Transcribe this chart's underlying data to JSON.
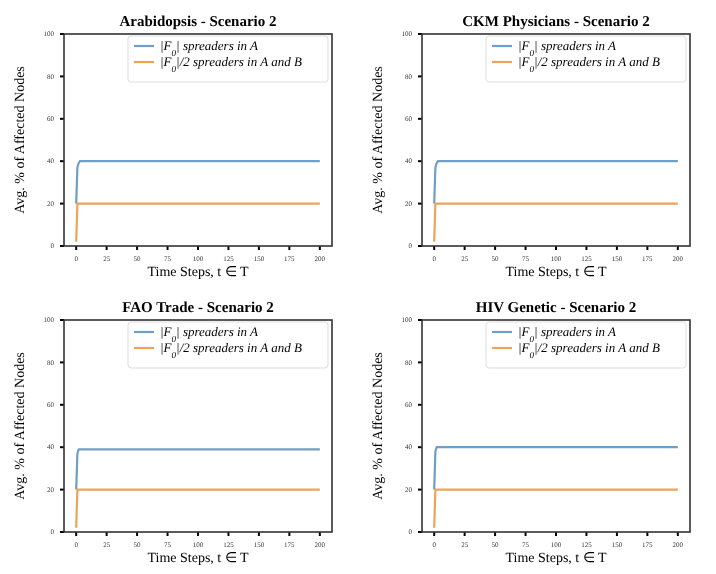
{
  "chart_data": [
    {
      "type": "line",
      "title": "Arabidopsis - Scenario 2",
      "xlabel": "Time Steps, t ∈ T",
      "ylabel": "Avg. % of Affected Nodes",
      "x": [
        0,
        1,
        2,
        3,
        200
      ],
      "xlim": [
        -10,
        210
      ],
      "ylim": [
        0,
        100
      ],
      "xticks": [
        0,
        25,
        50,
        75,
        100,
        125,
        150,
        175,
        200
      ],
      "yticks": [
        0,
        20,
        40,
        60,
        80,
        100
      ],
      "legend": "top right",
      "grid": false,
      "series": [
        {
          "name": "|F$_{0}$| spreaders in A",
          "color": "#6f9fc6",
          "values": [
            20,
            37,
            39,
            40,
            40
          ]
        },
        {
          "name": "|F$_{0}$|/2 spreaders in A and B",
          "color": "#eda35a",
          "values": [
            2,
            20,
            20,
            20,
            20
          ]
        }
      ]
    },
    {
      "type": "line",
      "title": "CKM Physicians - Scenario 2",
      "xlabel": "Time Steps, t ∈ T",
      "ylabel": "Avg. % of Affected Nodes",
      "x": [
        0,
        1,
        2,
        3,
        200
      ],
      "xlim": [
        -10,
        210
      ],
      "ylim": [
        0,
        100
      ],
      "xticks": [
        0,
        25,
        50,
        75,
        100,
        125,
        150,
        175,
        200
      ],
      "yticks": [
        0,
        20,
        40,
        60,
        80,
        100
      ],
      "legend": "top right",
      "grid": false,
      "series": [
        {
          "name": "|F$_{0}$| spreaders in A",
          "color": "#6f9fc6",
          "values": [
            20,
            37,
            39,
            40,
            40
          ]
        },
        {
          "name": "|F$_{0}$|/2 spreaders in A and B",
          "color": "#eda35a",
          "values": [
            2,
            20,
            20,
            20,
            20
          ]
        }
      ]
    },
    {
      "type": "line",
      "title": "FAO Trade - Scenario 2",
      "xlabel": "Time Steps, t ∈ T",
      "ylabel": "Avg. % of Affected Nodes",
      "x": [
        0,
        1,
        2,
        3,
        200
      ],
      "xlim": [
        -10,
        210
      ],
      "ylim": [
        0,
        100
      ],
      "xticks": [
        0,
        25,
        50,
        75,
        100,
        125,
        150,
        175,
        200
      ],
      "yticks": [
        0,
        20,
        40,
        60,
        80,
        100
      ],
      "legend": "top right",
      "grid": false,
      "series": [
        {
          "name": "|F$_{0}$| spreaders in A",
          "color": "#6f9fc6",
          "values": [
            20,
            37,
            39,
            39,
            39
          ]
        },
        {
          "name": "|F$_{0}$|/2 spreaders in A and B",
          "color": "#eda35a",
          "values": [
            2,
            20,
            20,
            20,
            20
          ]
        }
      ]
    },
    {
      "type": "line",
      "title": "HIV Genetic - Scenario 2",
      "xlabel": "Time Steps, t ∈ T",
      "ylabel": "Avg. % of Affected Nodes",
      "x": [
        0,
        1,
        2,
        3,
        200
      ],
      "xlim": [
        -10,
        210
      ],
      "ylim": [
        0,
        100
      ],
      "xticks": [
        0,
        25,
        50,
        75,
        100,
        125,
        150,
        175,
        200
      ],
      "yticks": [
        0,
        20,
        40,
        60,
        80,
        100
      ],
      "legend": "top right",
      "grid": false,
      "series": [
        {
          "name": "|F$_{0}$| spreaders in A",
          "color": "#6f9fc6",
          "values": [
            20,
            38,
            40,
            40,
            40
          ]
        },
        {
          "name": "|F$_{0}$|/2 spreaders in A and B",
          "color": "#eda35a",
          "values": [
            2,
            20,
            20,
            20,
            20
          ]
        }
      ]
    }
  ]
}
